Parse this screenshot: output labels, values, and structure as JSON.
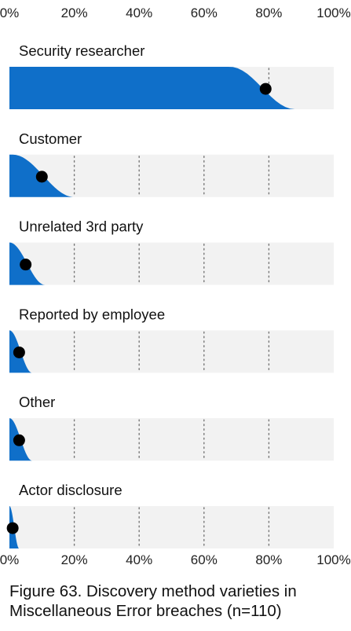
{
  "chart_data": {
    "type": "area",
    "title": "Figure 63. Discovery method varieties in Miscellaneous Error breaches (n=110)",
    "x_ticks": [
      "0%",
      "20%",
      "40%",
      "60%",
      "80%",
      "100%"
    ],
    "xlim": [
      0,
      100
    ],
    "grid": true,
    "colors": {
      "fill": "#0F6FC9",
      "background": "#F2F2F2",
      "point": "#000000",
      "grid": "#777777"
    },
    "categories": [
      "Security researcher",
      "Customer",
      "Unrelated 3rd party",
      "Reported by employee",
      "Other",
      "Actor disclosure"
    ],
    "series": [
      {
        "values": [
          79,
          10,
          5,
          3,
          3,
          1
        ],
        "range_low": [
          68,
          1,
          0,
          0,
          0,
          0
        ],
        "range_high": [
          88,
          20,
          11,
          7,
          7,
          3
        ]
      }
    ]
  }
}
